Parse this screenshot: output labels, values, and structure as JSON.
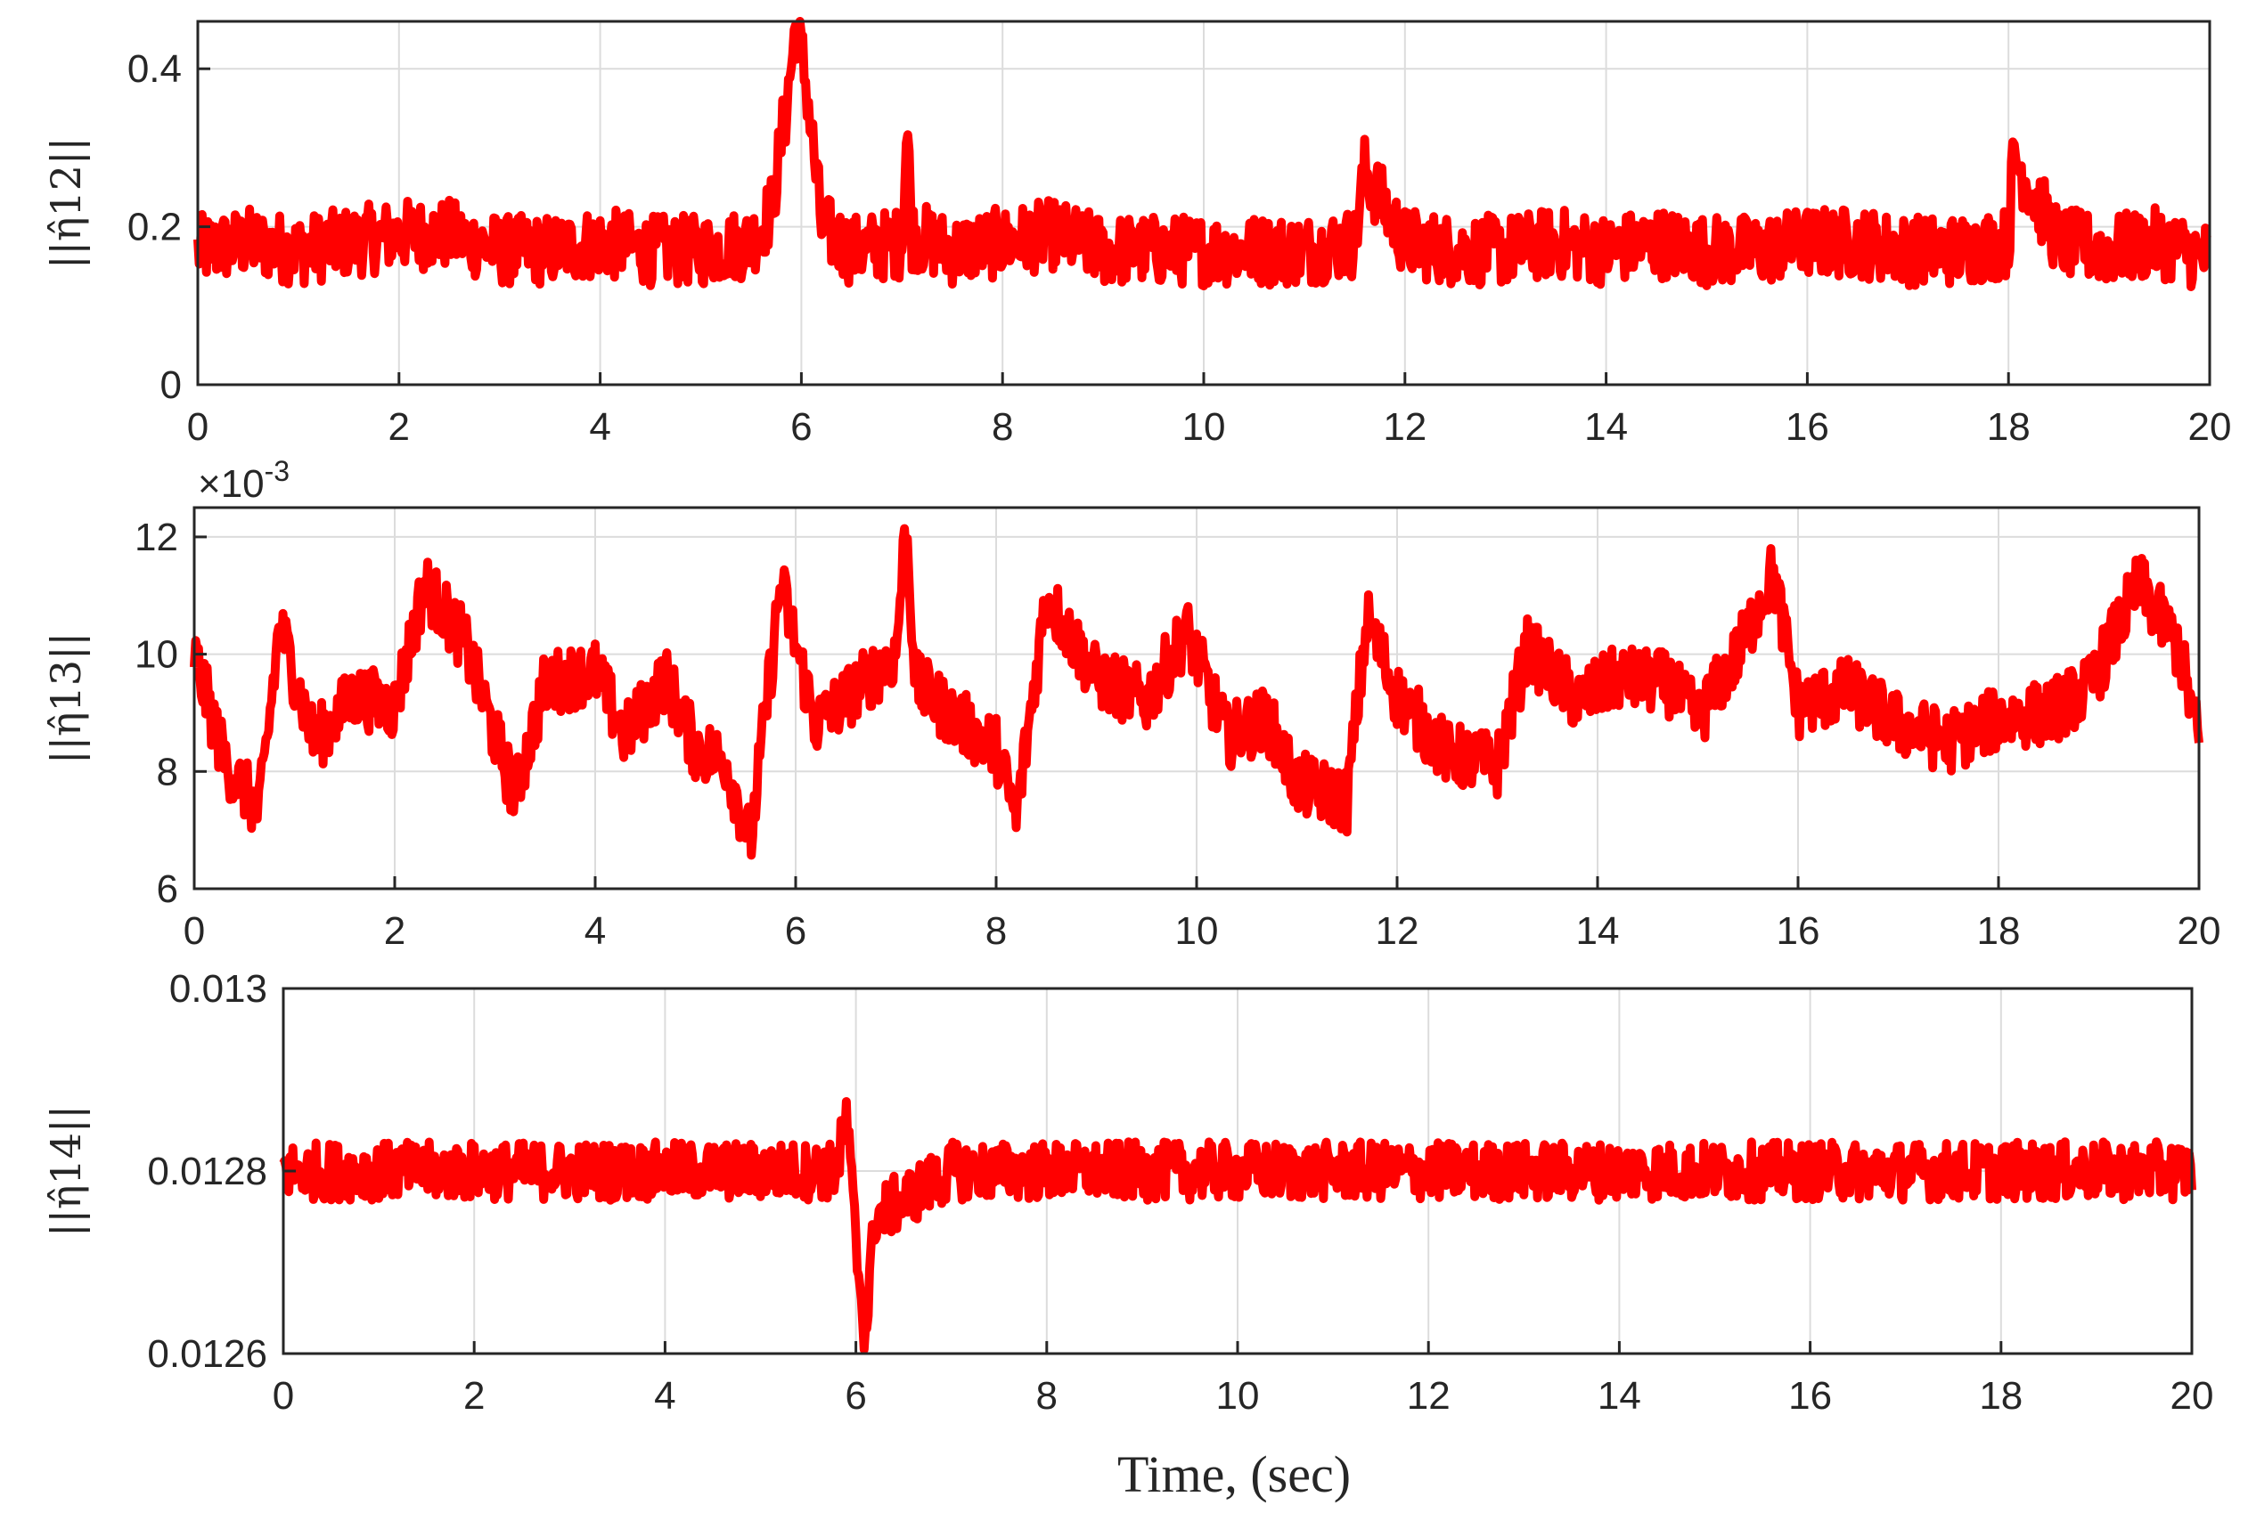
{
  "figure": {
    "xlabel": "Time, (sec)"
  },
  "chart_data": [
    {
      "type": "line",
      "ylabel": "||η̂12||",
      "exponent": "",
      "xlim": [
        0,
        20
      ],
      "ylim": [
        0,
        0.46
      ],
      "xticks": [
        0,
        2,
        4,
        6,
        8,
        10,
        12,
        14,
        16,
        18,
        20
      ],
      "xtick_labels": [
        "0",
        "2",
        "4",
        "6",
        "8",
        "10",
        "12",
        "14",
        "16",
        "18",
        "20"
      ],
      "yticks": [
        0,
        0.2,
        0.4
      ],
      "ytick_labels": [
        "0",
        "0.2",
        "0.4"
      ],
      "grid": true,
      "line_color": "#ff0000",
      "series": [
        {
          "x": [
            0,
            0.5,
            1,
            1.5,
            2,
            2.5,
            3,
            3.5,
            4,
            4.5,
            5,
            5.5,
            5.7,
            5.85,
            5.95,
            6.05,
            6.2,
            6.5,
            7,
            7.05,
            7.1,
            7.5,
            8,
            8.5,
            9,
            9.5,
            10,
            10.5,
            11,
            11.5,
            11.6,
            12,
            12.5,
            13,
            13.5,
            14,
            14.5,
            15,
            15.5,
            16,
            16.5,
            17,
            17.5,
            18,
            18.05,
            18.5,
            19,
            19.5,
            20
          ],
          "y": [
            0.17,
            0.18,
            0.17,
            0.18,
            0.19,
            0.19,
            0.17,
            0.17,
            0.18,
            0.17,
            0.17,
            0.18,
            0.22,
            0.35,
            0.46,
            0.38,
            0.2,
            0.17,
            0.18,
            0.33,
            0.19,
            0.17,
            0.18,
            0.19,
            0.17,
            0.17,
            0.17,
            0.17,
            0.17,
            0.18,
            0.27,
            0.18,
            0.17,
            0.17,
            0.18,
            0.17,
            0.18,
            0.17,
            0.17,
            0.18,
            0.18,
            0.17,
            0.17,
            0.18,
            0.29,
            0.18,
            0.17,
            0.18,
            0.16
          ]
        }
      ],
      "noise_amplitude": 0.045
    },
    {
      "type": "line",
      "ylabel": "||η̂13||",
      "exponent": "×10",
      "exponent_power": "-3",
      "xlim": [
        0,
        20
      ],
      "ylim": [
        6,
        12.5
      ],
      "xticks": [
        0,
        2,
        4,
        6,
        8,
        10,
        12,
        14,
        16,
        18,
        20
      ],
      "xtick_labels": [
        "0",
        "2",
        "4",
        "6",
        "8",
        "10",
        "12",
        "14",
        "16",
        "18",
        "20"
      ],
      "yticks": [
        6,
        8,
        10,
        12
      ],
      "ytick_labels": [
        "6",
        "8",
        "10",
        "12"
      ],
      "grid": true,
      "line_color": "#ff0000",
      "series": [
        {
          "x": [
            0,
            0.3,
            0.65,
            0.85,
            1.2,
            1.6,
            2,
            2.3,
            2.7,
            3,
            3.2,
            3.5,
            4,
            4.3,
            4.7,
            5,
            5.3,
            5.55,
            5.85,
            6.2,
            6.6,
            7,
            7.1,
            7.2,
            7.6,
            8,
            8.2,
            8.5,
            9,
            9.5,
            9.9,
            10.3,
            10.7,
            11,
            11.5,
            11.7,
            12,
            12.5,
            13,
            13.3,
            13.8,
            14.2,
            14.7,
            15,
            15.4,
            15.75,
            16,
            16.5,
            17,
            17.5,
            18,
            18.5,
            18.9,
            19.4,
            19.8,
            20
          ],
          "y": [
            10,
            8.2,
            7.3,
            10.5,
            8.5,
            9.3,
            9.1,
            11.2,
            10.2,
            8.6,
            7.6,
            9.5,
            9.7,
            8.6,
            9.6,
            8.4,
            8.2,
            6.8,
            11.2,
            8.8,
            9.4,
            10,
            12.2,
            9.5,
            8.9,
            8.4,
            7.2,
            11,
            9.6,
            9.2,
            10.4,
            8.6,
            8.9,
            7.8,
            7.5,
            10.6,
            9.3,
            8.3,
            8.1,
            10.1,
            9.2,
            9.6,
            9.5,
            8.9,
            10,
            11.4,
            9.1,
            9.4,
            8.8,
            8.5,
            8.9,
            9,
            9.4,
            11.2,
            10.1,
            8.5
          ]
        }
      ],
      "noise_amplitude": 0.55
    },
    {
      "type": "line",
      "ylabel": "||η̂14||",
      "exponent": "",
      "xlim": [
        0,
        20
      ],
      "ylim": [
        0.0126,
        0.013
      ],
      "xticks": [
        0,
        2,
        4,
        6,
        8,
        10,
        12,
        14,
        16,
        18,
        20
      ],
      "xtick_labels": [
        "0",
        "2",
        "4",
        "6",
        "8",
        "10",
        "12",
        "14",
        "16",
        "18",
        "20"
      ],
      "yticks": [
        0.0126,
        0.0128,
        0.013
      ],
      "ytick_labels": [
        "0.0126",
        "0.0128",
        "0.013"
      ],
      "grid": true,
      "line_color": "#ff0000",
      "series": [
        {
          "x": [
            0,
            1,
            2,
            3,
            4,
            5,
            5.8,
            5.9,
            6.0,
            6.1,
            6.2,
            7,
            8,
            9,
            10,
            11,
            12,
            13,
            14,
            15,
            16,
            17,
            18,
            19,
            20
          ],
          "y": [
            0.0128,
            0.0128,
            0.0128,
            0.0128,
            0.0128,
            0.0128,
            0.0128,
            0.01286,
            0.01272,
            0.01262,
            0.01275,
            0.0128,
            0.0128,
            0.0128,
            0.0128,
            0.0128,
            0.0128,
            0.0128,
            0.0128,
            0.0128,
            0.0128,
            0.0128,
            0.0128,
            0.0128,
            0.0128
          ]
        }
      ],
      "noise_amplitude": 3.2e-05
    }
  ]
}
